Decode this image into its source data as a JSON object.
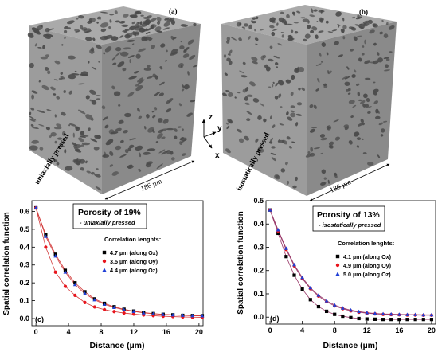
{
  "panel_a": {
    "label": "(a)",
    "side_caption": "uniaxially pressed",
    "dimension": "186 µm"
  },
  "panel_b": {
    "label": "(b)",
    "side_caption": "isostatically pressed",
    "dimension": "186 µm"
  },
  "axes_triad": {
    "z": "z",
    "y": "y",
    "x": "x"
  },
  "colors": {
    "cube_top": "#a9a9a9",
    "cube_front": "#9a9a9a",
    "cube_side": "#878787",
    "pore": "#4a4a4a",
    "ox": "#000000",
    "oy": "#e8141c",
    "oz": "#1f3fd6",
    "fit_c": "#d23a3a",
    "fit_d": "#9a3a6a"
  },
  "chart_data": [
    {
      "type": "line",
      "panel_label": "(c)",
      "xlabel": "Distance (µm)",
      "ylabel": "Spatial correlation function",
      "xlim": [
        -0.5,
        20.5
      ],
      "ylim": [
        -0.04,
        0.66
      ],
      "xticks": [
        0,
        4,
        8,
        12,
        16,
        20
      ],
      "yticks": [
        0.0,
        0.1,
        0.2,
        0.3,
        0.4,
        0.5,
        0.6
      ],
      "ytick_labels": [
        "0.0",
        "0.1",
        "0.2",
        "0.3",
        "0.4",
        "0.5",
        "0.6"
      ],
      "title_box": {
        "title": "Porosity of 19%",
        "subtitle": "- uniaxially pressed"
      },
      "legend_title": "Correlation lenghts:",
      "x": [
        0,
        1.2,
        2.4,
        3.6,
        4.8,
        6,
        7.2,
        8.4,
        9.6,
        10.8,
        12,
        13.2,
        14.4,
        15.6,
        16.8,
        18,
        19.2,
        20.4
      ],
      "series": [
        {
          "name": "4.7 µm (along Ox)",
          "marker": "square",
          "color": "#000000",
          "values": [
            0.62,
            0.47,
            0.36,
            0.27,
            0.2,
            0.15,
            0.11,
            0.085,
            0.066,
            0.052,
            0.042,
            0.034,
            0.028,
            0.024,
            0.021,
            0.018,
            0.017,
            0.016
          ]
        },
        {
          "name": "3.5 µm (along Oy)",
          "marker": "circle",
          "color": "#e8141c",
          "values": [
            0.62,
            0.4,
            0.26,
            0.18,
            0.13,
            0.09,
            0.065,
            0.05,
            0.039,
            0.031,
            0.025,
            0.02,
            0.016,
            0.013,
            0.011,
            0.009,
            0.008,
            0.007
          ]
        },
        {
          "name": "4.4 µm (along Oz)",
          "marker": "triangle",
          "color": "#1f3fd6",
          "values": [
            0.62,
            0.46,
            0.35,
            0.26,
            0.19,
            0.14,
            0.105,
            0.08,
            0.062,
            0.049,
            0.04,
            0.032,
            0.027,
            0.023,
            0.02,
            0.018,
            0.016,
            0.015
          ]
        }
      ]
    },
    {
      "type": "line",
      "panel_label": "(d)",
      "xlabel": "Distance (µm)",
      "ylabel": "Spatial correlation function",
      "xlim": [
        -0.5,
        20.5
      ],
      "ylim": [
        -0.03,
        0.5
      ],
      "xticks": [
        0,
        4,
        8,
        12,
        16,
        20
      ],
      "yticks": [
        0.0,
        0.1,
        0.2,
        0.3,
        0.4,
        0.5
      ],
      "ytick_labels": [
        "0.0",
        "0.1",
        "0.2",
        "0.3",
        "0.4",
        "0.5"
      ],
      "title_box": {
        "title": "Porosity of 13%",
        "subtitle": "- isostatically pressed"
      },
      "legend_title": "Correlation lenghts:",
      "x": [
        0,
        1,
        2,
        3,
        4,
        5,
        6,
        7,
        8,
        9,
        10,
        11,
        12,
        13,
        14,
        15,
        16,
        17,
        18,
        19,
        20
      ],
      "series": [
        {
          "name": "4.1 µm (along Ox)",
          "marker": "square",
          "color": "#000000",
          "values": [
            0.46,
            0.36,
            0.26,
            0.18,
            0.12,
            0.075,
            0.045,
            0.025,
            0.012,
            0.004,
            -0.002,
            -0.006,
            -0.008,
            -0.009,
            -0.01,
            -0.01,
            -0.01,
            -0.01,
            -0.01,
            -0.01,
            -0.01
          ]
        },
        {
          "name": "4.9 µm (along Oy)",
          "marker": "circle",
          "color": "#e8141c",
          "values": [
            0.46,
            0.37,
            0.29,
            0.22,
            0.165,
            0.122,
            0.09,
            0.066,
            0.048,
            0.036,
            0.027,
            0.021,
            0.017,
            0.014,
            0.012,
            0.011,
            0.01,
            0.009,
            0.009,
            0.008,
            0.008
          ]
        },
        {
          "name": "5.0 µm (along Oz)",
          "marker": "triangle",
          "color": "#1f3fd6",
          "values": [
            0.46,
            0.375,
            0.295,
            0.225,
            0.17,
            0.126,
            0.094,
            0.07,
            0.052,
            0.039,
            0.03,
            0.024,
            0.019,
            0.016,
            0.014,
            0.013,
            0.012,
            0.011,
            0.011,
            0.01,
            0.01
          ]
        }
      ]
    }
  ]
}
